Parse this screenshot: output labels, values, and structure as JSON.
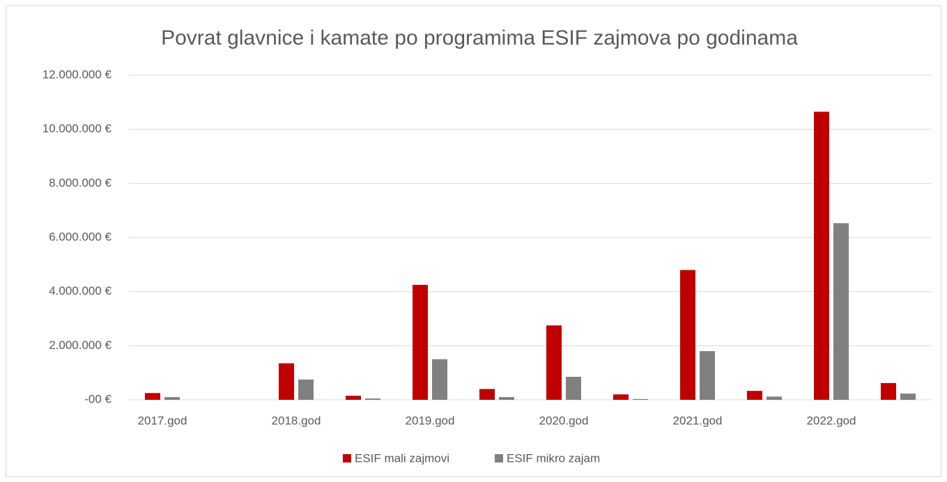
{
  "chart_data": {
    "type": "bar",
    "title": "Povrat glavnice i kamate po programima ESIF zajmova po godinama",
    "categories": [
      "2017.god",
      null,
      "2018.god",
      null,
      "2019.god",
      null,
      "2020.god",
      null,
      "2021.god",
      null,
      "2022.god",
      null
    ],
    "series": [
      {
        "name": "ESIF mali zajmovi",
        "color": "#c00000",
        "values": [
          250000,
          0,
          1350000,
          150000,
          4250000,
          400000,
          2750000,
          200000,
          4800000,
          330000,
          10650000,
          620000
        ]
      },
      {
        "name": "ESIF mikro zajam",
        "color": "#808080",
        "values": [
          100000,
          0,
          750000,
          50000,
          1500000,
          100000,
          850000,
          30000,
          1800000,
          120000,
          6530000,
          230000
        ]
      }
    ],
    "ylim": [
      0,
      12000000
    ],
    "yticks": [
      {
        "value": 0,
        "label": "-00 €"
      },
      {
        "value": 2000000,
        "label": "2.000.000 €"
      },
      {
        "value": 4000000,
        "label": "4.000.000 €"
      },
      {
        "value": 6000000,
        "label": "6.000.000 €"
      },
      {
        "value": 8000000,
        "label": "8.000.000 €"
      },
      {
        "value": 10000000,
        "label": "10.000.000 €"
      },
      {
        "value": 12000000,
        "label": "12.000.000 €"
      }
    ],
    "grid": true,
    "legend": "bottom"
  }
}
